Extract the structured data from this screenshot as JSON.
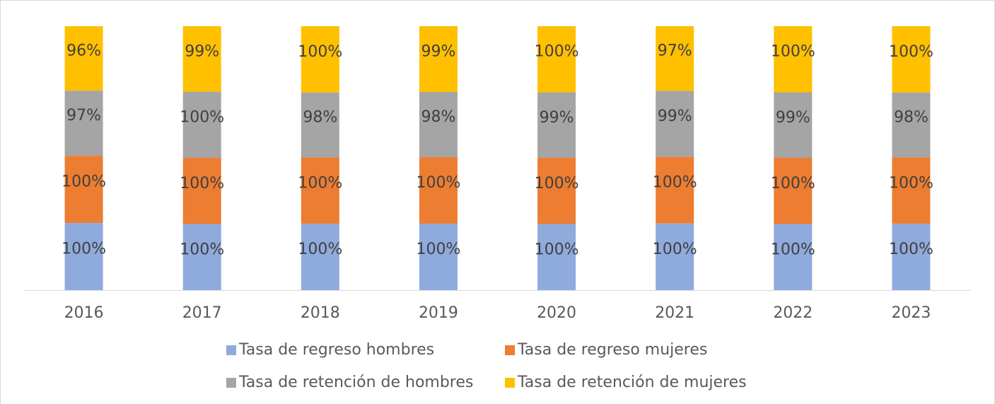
{
  "chart_data": {
    "type": "bar",
    "stack": "percent",
    "categories": [
      "2016",
      "2017",
      "2018",
      "2019",
      "2020",
      "2021",
      "2022",
      "2023"
    ],
    "series": [
      {
        "name": "Tasa de regreso hombres",
        "color": "#8faadc",
        "values": [
          100,
          100,
          100,
          100,
          100,
          100,
          100,
          100
        ],
        "value_labels": [
          "100%",
          "100%",
          "100%",
          "100%",
          "100%",
          "100%",
          "100%",
          "100%"
        ]
      },
      {
        "name": "Tasa de regreso mujeres",
        "color": "#ed7d31",
        "values": [
          100,
          100,
          100,
          100,
          100,
          100,
          100,
          100
        ],
        "value_labels": [
          "100%",
          "100%",
          "100%",
          "100%",
          "100%",
          "100%",
          "100%",
          "100%"
        ]
      },
      {
        "name": "Tasa de retención de hombres",
        "color": "#a5a5a5",
        "values": [
          97,
          100,
          98,
          98,
          99,
          99,
          99,
          98
        ],
        "value_labels": [
          "97%",
          "100%",
          "98%",
          "98%",
          "99%",
          "99%",
          "99%",
          "98%"
        ]
      },
      {
        "name": "Tasa de retención de mujeres",
        "color": "#ffc000",
        "values": [
          96,
          99,
          100,
          99,
          100,
          97,
          100,
          100
        ],
        "value_labels": [
          "96%",
          "99%",
          "100%",
          "99%",
          "100%",
          "97%",
          "100%",
          "100%"
        ]
      }
    ],
    "legend": "bottom"
  }
}
